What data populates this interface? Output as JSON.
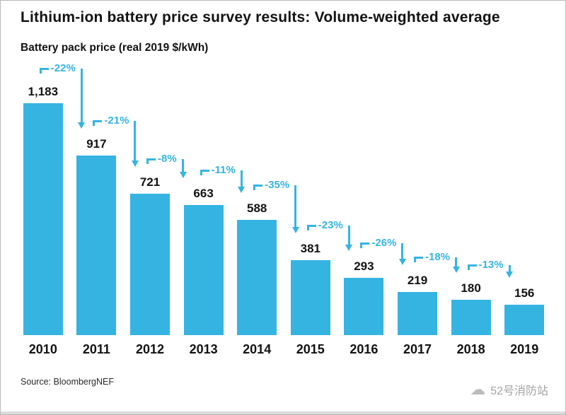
{
  "title": "Lithium-ion battery price survey results: Volume-weighted average",
  "subtitle": "Battery pack price (real 2019 $/kWh)",
  "source": "Source: BloombergNEF",
  "watermark": {
    "name": "52号消防站",
    "icon": "cloud-icon"
  },
  "colors": {
    "bar": "#35B4E2",
    "accent": "#35B4E2",
    "text": "#121212",
    "muted": "#a3a3a3"
  },
  "chart_data": {
    "type": "bar",
    "title": "Lithium-ion battery price survey results: Volume-weighted average",
    "ylabel": "Battery pack price (real 2019 $/kWh)",
    "xlabel": "",
    "categories": [
      "2010",
      "2011",
      "2012",
      "2013",
      "2014",
      "2015",
      "2016",
      "2017",
      "2018",
      "2019"
    ],
    "values": [
      1183,
      917,
      721,
      663,
      588,
      381,
      293,
      219,
      180,
      156
    ],
    "value_labels": [
      "1,183",
      "917",
      "721",
      "663",
      "588",
      "381",
      "293",
      "219",
      "180",
      "156"
    ],
    "percent_changes": [
      "-22%",
      "-21%",
      "-8%",
      "-11%",
      "-35%",
      "-23%",
      "-26%",
      "-18%",
      "-13%"
    ],
    "ylim": [
      0,
      1183
    ],
    "grid": false,
    "legend": "none"
  }
}
